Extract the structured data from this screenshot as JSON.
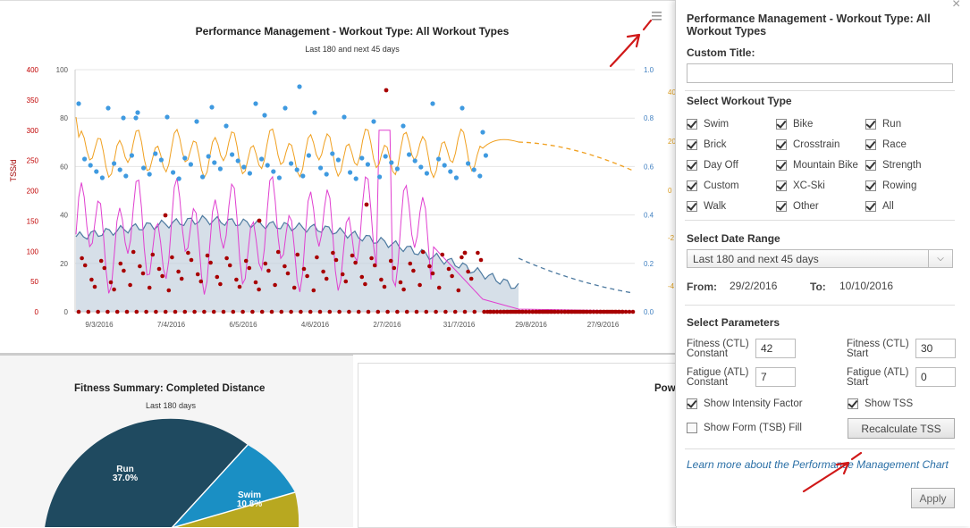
{
  "main_chart": {
    "title": "Performance Management - Workout Type: All Workout Types",
    "subtitle": "Last 180 and next 45 days",
    "left_axis_label": "TSS/d",
    "tss_ticks": [
      "400",
      "350",
      "300",
      "250",
      "200",
      "150",
      "100",
      "50",
      "0"
    ],
    "ctl_ticks": [
      "100",
      "80",
      "60",
      "40",
      "20",
      "0"
    ],
    "if_ticks": [
      "1.0",
      "0.8",
      "0.6",
      "0.4",
      "0.2",
      "0.0"
    ],
    "tsb_ticks": [
      "40",
      "20",
      "0",
      "-2",
      "-4"
    ],
    "x_ticks": [
      "9/3/2016",
      "7/4/2016",
      "6/5/2016",
      "4/6/2016",
      "2/7/2016",
      "31/7/2016",
      "29/8/2016",
      "27/9/2016"
    ],
    "colors": {
      "ctl": "#4d7aa0",
      "atl": "#e040d0",
      "tsb": "#f0a020",
      "if": "#3f9ae0",
      "tss": "#a80000"
    }
  },
  "chart_data": {
    "type": "line",
    "title": "Performance Management - Workout Type: All Workout Types",
    "subtitle": "Last 180 and next 45 days",
    "ylabel": "TSS/d",
    "x": [
      "9/3/2016",
      "7/4/2016",
      "6/5/2016",
      "4/6/2016",
      "2/7/2016",
      "31/7/2016",
      "29/8/2016",
      "27/9/2016"
    ],
    "ylim": [
      0,
      100
    ],
    "series": [
      {
        "values": [
          31,
          35,
          38,
          36,
          34,
          28,
          20,
          10
        ]
      },
      {
        "values": [
          20,
          30,
          35,
          32,
          55,
          15,
          1,
          0
        ]
      }
    ]
  },
  "bottom_left": {
    "title": "Fitness Summary: Completed Distance",
    "subtitle": "Last 180 days",
    "slices": [
      {
        "label": "Run",
        "percent": "37.0%",
        "value": 37.0,
        "color": "#1f4a60"
      },
      {
        "label": "Swim",
        "percent": "10.8%",
        "value": 10.8,
        "color": "#1a8fc4"
      }
    ]
  },
  "bottom_right": {
    "title_fragment": "Pow"
  },
  "panel": {
    "title": "Performance Management - Workout Type: All Workout Types",
    "close_label": "×",
    "custom_title_label": "Custom Title:",
    "custom_title_value": "",
    "workout_type_label": "Select Workout Type",
    "workout_types": [
      {
        "label": "Swim",
        "checked": true
      },
      {
        "label": "Bike",
        "checked": true
      },
      {
        "label": "Run",
        "checked": true
      },
      {
        "label": "Brick",
        "checked": true
      },
      {
        "label": "Crosstrain",
        "checked": true
      },
      {
        "label": "Race",
        "checked": true
      },
      {
        "label": "Day Off",
        "checked": true
      },
      {
        "label": "Mountain Bike",
        "checked": true
      },
      {
        "label": "Strength",
        "checked": true
      },
      {
        "label": "Custom",
        "checked": true
      },
      {
        "label": "XC-Ski",
        "checked": true
      },
      {
        "label": "Rowing",
        "checked": true
      },
      {
        "label": "Walk",
        "checked": true
      },
      {
        "label": "Other",
        "checked": true
      },
      {
        "label": "All",
        "checked": true
      }
    ],
    "date_range_label": "Select Date Range",
    "date_range_value": "Last 180 and next 45 days",
    "from_label": "From:",
    "from_value": "29/2/2016",
    "to_label": "To:",
    "to_value": "10/10/2016",
    "params_label": "Select Parameters",
    "ctl_constant_label": [
      "Fitness (CTL)",
      "Constant"
    ],
    "ctl_constant_value": "42",
    "ctl_start_label": [
      "Fitness (CTL)",
      "Start"
    ],
    "ctl_start_value": "30",
    "atl_constant_label": [
      "Fatigue (ATL)",
      "Constant"
    ],
    "atl_constant_value": "7",
    "atl_start_label": [
      "Fatigue (ATL)",
      "Start"
    ],
    "atl_start_value": "0",
    "show_if_label": "Show Intensity Factor",
    "show_if_checked": true,
    "show_tss_label": "Show TSS",
    "show_tss_checked": true,
    "show_tsb_label": "Show Form (TSB) Fill",
    "show_tsb_checked": false,
    "recalc_label": "Recalculate TSS",
    "learn_more_label": "Learn more about the Performance Management Chart",
    "apply_label": "Apply"
  }
}
